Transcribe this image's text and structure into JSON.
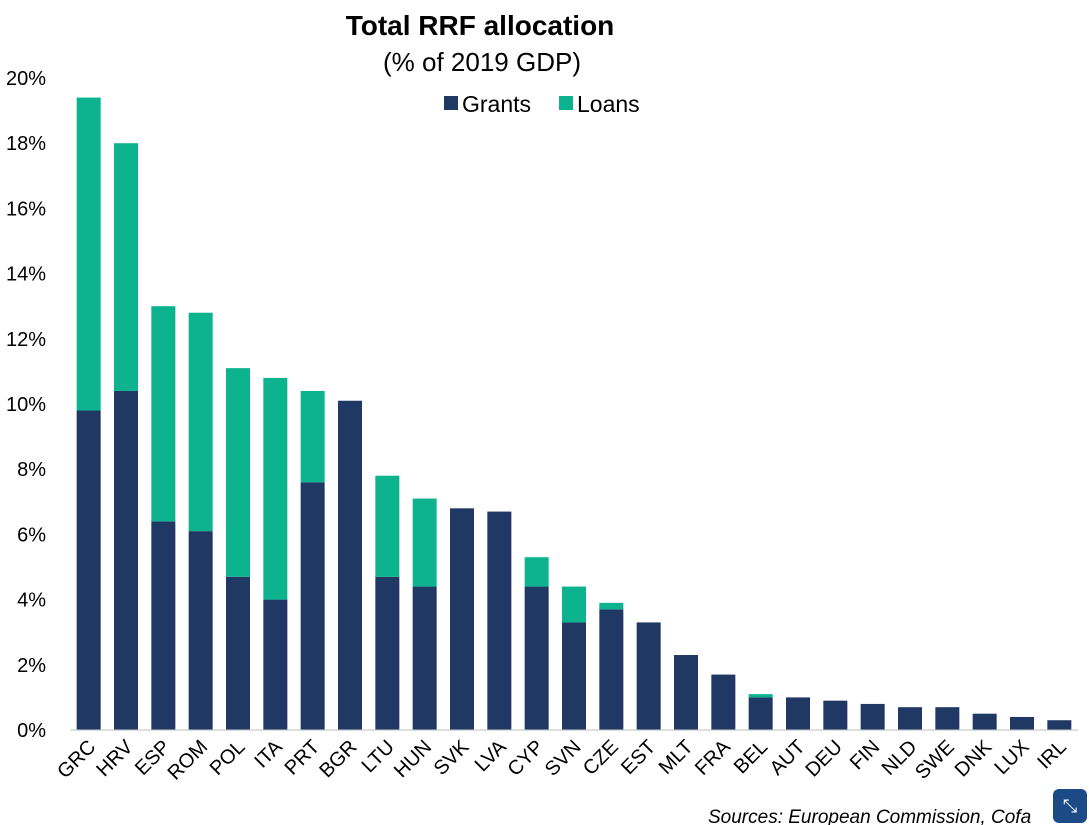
{
  "chart_data": {
    "type": "bar",
    "stacked": true,
    "title": "Total RRF allocation",
    "subtitle": "(% of  2019 GDP)",
    "categories": [
      "GRC",
      "HRV",
      "ESP",
      "ROM",
      "POL",
      "ITA",
      "PRT",
      "BGR",
      "LTU",
      "HUN",
      "SVK",
      "LVA",
      "CYP",
      "SVN",
      "CZE",
      "EST",
      "MLT",
      "FRA",
      "BEL",
      "AUT",
      "DEU",
      "FIN",
      "NLD",
      "SWE",
      "DNK",
      "LUX",
      "IRL"
    ],
    "series": [
      {
        "name": "Grants",
        "color": "#1f3864",
        "values": [
          9.8,
          10.4,
          6.4,
          6.1,
          4.7,
          4.0,
          7.6,
          10.1,
          4.7,
          4.4,
          6.8,
          6.7,
          4.4,
          3.3,
          3.7,
          3.3,
          2.3,
          1.7,
          1.0,
          1.0,
          0.9,
          0.8,
          0.7,
          0.7,
          0.5,
          0.4,
          0.3
        ]
      },
      {
        "name": "Loans",
        "color": "#0db38f",
        "values": [
          9.6,
          7.6,
          6.6,
          6.7,
          6.4,
          6.8,
          2.8,
          0,
          3.1,
          2.7,
          0,
          0,
          0.9,
          1.1,
          0.2,
          0,
          0,
          0,
          0.1,
          0,
          0,
          0,
          0,
          0,
          0,
          0,
          0
        ]
      }
    ],
    "ylim": [
      0,
      20
    ],
    "yticks": [
      "0%",
      "2%",
      "4%",
      "6%",
      "8%",
      "10%",
      "12%",
      "14%",
      "16%",
      "18%",
      "20%"
    ],
    "grid": false,
    "legend_position": "top-center",
    "source": "Sources: European Commission, Cofa"
  },
  "ui": {
    "collapse_icon": "collapse-arrows-icon",
    "collapse_glyph": "⤡"
  }
}
